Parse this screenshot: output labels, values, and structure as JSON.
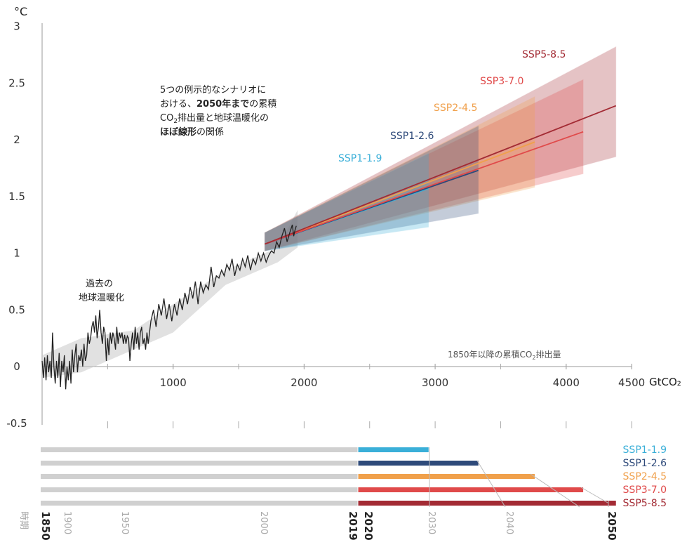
{
  "chart_data": {
    "type": "line",
    "y_unit": "°C",
    "x_unit": "GtCO₂",
    "ylim": [
      -0.5,
      3
    ],
    "xlim": [
      0,
      4500
    ],
    "y_ticks": [
      "3",
      "2.5",
      "2",
      "1.5",
      "1",
      "0.5",
      "0",
      "-0.5"
    ],
    "x_ticks": [
      "1000",
      "2000",
      "3000",
      "4000",
      "4500"
    ],
    "annotation_main": {
      "l1": "5つの例示的なシナリオに",
      "l2a": "おける、",
      "l2b": "2050年まで",
      "l2c": "の累積",
      "l3a": "CO",
      "l3sub": "2",
      "l3b": "排出量と地球温暖化の",
      "l4a": "ほぼ線形",
      "l4b": "の関係"
    },
    "annotation_hist": {
      "l1": "過去の",
      "l2": "地球温暖化"
    },
    "annotation_axis": {
      "pre": "1850年以降の累積CO",
      "sub": "2",
      "post": "排出量"
    },
    "historical": [
      [
        0,
        0.05
      ],
      [
        10,
        -0.1
      ],
      [
        20,
        0.08
      ],
      [
        30,
        -0.12
      ],
      [
        40,
        0.1
      ],
      [
        50,
        -0.05
      ],
      [
        60,
        0.05
      ],
      [
        70,
        -0.1
      ],
      [
        80,
        0.3
      ],
      [
        90,
        0.0
      ],
      [
        100,
        -0.15
      ],
      [
        110,
        0.05
      ],
      [
        120,
        -0.1
      ],
      [
        130,
        0.12
      ],
      [
        140,
        -0.18
      ],
      [
        150,
        0.05
      ],
      [
        160,
        -0.05
      ],
      [
        170,
        0.1
      ],
      [
        180,
        -0.2
      ],
      [
        190,
        0.0
      ],
      [
        200,
        -0.12
      ],
      [
        210,
        0.05
      ],
      [
        220,
        -0.15
      ],
      [
        230,
        0.15
      ],
      [
        240,
        -0.05
      ],
      [
        250,
        0.1
      ],
      [
        260,
        0.2
      ],
      [
        270,
        -0.05
      ],
      [
        280,
        0.1
      ],
      [
        290,
        0.05
      ],
      [
        300,
        0.15
      ],
      [
        310,
        0.0
      ],
      [
        320,
        0.2
      ],
      [
        330,
        0.05
      ],
      [
        340,
        0.1
      ],
      [
        350,
        0.3
      ],
      [
        360,
        0.2
      ],
      [
        370,
        0.25
      ],
      [
        380,
        0.35
      ],
      [
        390,
        0.4
      ],
      [
        400,
        0.3
      ],
      [
        410,
        0.45
      ],
      [
        420,
        0.25
      ],
      [
        430,
        0.35
      ],
      [
        440,
        0.5
      ],
      [
        450,
        0.3
      ],
      [
        460,
        0.2
      ],
      [
        470,
        0.35
      ],
      [
        480,
        0.3
      ],
      [
        490,
        0.05
      ],
      [
        500,
        0.25
      ],
      [
        510,
        0.1
      ],
      [
        520,
        0.3
      ],
      [
        530,
        0.2
      ],
      [
        540,
        0.3
      ],
      [
        550,
        0.25
      ],
      [
        560,
        0.15
      ],
      [
        570,
        0.35
      ],
      [
        580,
        0.2
      ],
      [
        590,
        0.3
      ],
      [
        600,
        0.25
      ],
      [
        610,
        0.3
      ],
      [
        620,
        0.2
      ],
      [
        630,
        0.28
      ],
      [
        640,
        0.2
      ],
      [
        650,
        0.27
      ],
      [
        660,
        0.25
      ],
      [
        670,
        0.05
      ],
      [
        680,
        0.2
      ],
      [
        690,
        0.3
      ],
      [
        700,
        0.15
      ],
      [
        710,
        0.35
      ],
      [
        720,
        0.2
      ],
      [
        730,
        0.3
      ],
      [
        740,
        0.15
      ],
      [
        750,
        0.3
      ],
      [
        760,
        0.35
      ],
      [
        770,
        0.2
      ],
      [
        780,
        0.25
      ],
      [
        790,
        0.15
      ],
      [
        800,
        0.3
      ],
      [
        810,
        0.2
      ],
      [
        830,
        0.4
      ],
      [
        850,
        0.5
      ],
      [
        870,
        0.35
      ],
      [
        890,
        0.55
      ],
      [
        910,
        0.45
      ],
      [
        930,
        0.6
      ],
      [
        950,
        0.42
      ],
      [
        970,
        0.55
      ],
      [
        990,
        0.4
      ],
      [
        1010,
        0.55
      ],
      [
        1030,
        0.45
      ],
      [
        1050,
        0.6
      ],
      [
        1070,
        0.5
      ],
      [
        1090,
        0.65
      ],
      [
        1110,
        0.55
      ],
      [
        1130,
        0.7
      ],
      [
        1150,
        0.6
      ],
      [
        1170,
        0.75
      ],
      [
        1190,
        0.55
      ],
      [
        1210,
        0.75
      ],
      [
        1230,
        0.65
      ],
      [
        1250,
        0.72
      ],
      [
        1270,
        0.68
      ],
      [
        1290,
        0.88
      ],
      [
        1310,
        0.7
      ],
      [
        1330,
        0.8
      ],
      [
        1350,
        0.78
      ],
      [
        1370,
        0.85
      ],
      [
        1390,
        0.8
      ],
      [
        1410,
        0.9
      ],
      [
        1430,
        0.85
      ],
      [
        1450,
        0.95
      ],
      [
        1470,
        0.8
      ],
      [
        1490,
        0.9
      ],
      [
        1510,
        0.85
      ],
      [
        1530,
        0.95
      ],
      [
        1550,
        0.88
      ],
      [
        1570,
        0.98
      ],
      [
        1590,
        0.85
      ],
      [
        1610,
        0.95
      ],
      [
        1630,
        0.9
      ],
      [
        1650,
        1.0
      ],
      [
        1670,
        0.93
      ],
      [
        1690,
        1.0
      ],
      [
        1710,
        0.92
      ],
      [
        1730,
        0.98
      ],
      [
        1750,
        1.02
      ],
      [
        1770,
        1.0
      ],
      [
        1790,
        1.1
      ],
      [
        1810,
        1.05
      ],
      [
        1830,
        1.15
      ],
      [
        1850,
        1.22
      ],
      [
        1870,
        1.1
      ],
      [
        1890,
        1.18
      ],
      [
        1910,
        1.25
      ],
      [
        1920,
        1.15
      ],
      [
        1930,
        1.2
      ],
      [
        1940,
        1.24
      ]
    ],
    "series": [
      {
        "name": "SSP1-1.9",
        "color": "#3aafd8",
        "start": 1700,
        "end": 2950,
        "y_end": 1.57,
        "band_top": 1.88,
        "band_bot": 1.23
      },
      {
        "name": "SSP1-2.6",
        "color": "#2e4a7a",
        "start": 1700,
        "end": 3330,
        "y_end": 1.73,
        "band_top": 2.12,
        "band_bot": 1.35
      },
      {
        "name": "SSP2-4.5",
        "color": "#f0a04b",
        "start": 1700,
        "end": 3760,
        "y_end": 1.98,
        "band_top": 2.38,
        "band_bot": 1.58
      },
      {
        "name": "SSP3-7.0",
        "color": "#e04a4a",
        "start": 1700,
        "end": 4130,
        "y_end": 2.07,
        "band_top": 2.53,
        "band_bot": 1.7
      },
      {
        "name": "SSP5-8.5",
        "color": "#a32b34",
        "start": 1700,
        "end": 4380,
        "y_end": 2.3,
        "band_top": 2.82,
        "band_bot": 1.85
      }
    ],
    "timeline": {
      "year_labels": [
        "時期",
        "1850",
        "1900",
        "1950",
        "2000",
        "2019",
        "2020",
        "2030",
        "2040",
        "2050"
      ]
    }
  }
}
